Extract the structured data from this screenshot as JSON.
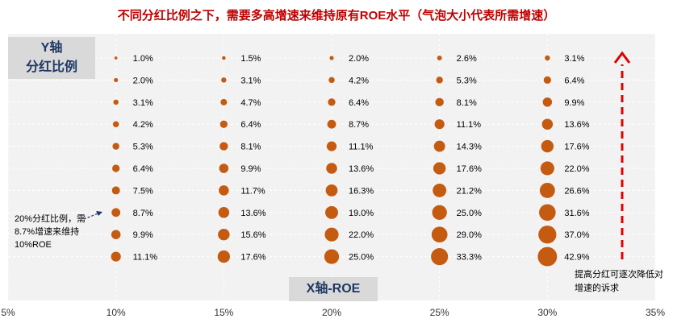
{
  "title": "不同分红比例之下，需要多高增速来维持原有ROE水平（气泡大小代表所需增速）",
  "y_title_line1": "Y轴",
  "y_title_line2": "分红比例",
  "x_title": "X轴-ROE",
  "note_left": "20%分红比例，需8.7%增速来维持10%ROE",
  "note_right": "提高分红可逐次降低对增速的诉求",
  "colors": {
    "bubble": "#c55a11",
    "title": "#c00000",
    "axis_title": "#1f3864",
    "arrow": "#e00000",
    "panel": "#d9d9d9"
  },
  "chart_data": {
    "type": "bubble",
    "x_label": "X轴-ROE",
    "y_label": "Y轴 分红比例",
    "xlim": [
      "5%",
      "35%"
    ],
    "x_ticks": [
      "5%",
      "10%",
      "15%",
      "20%",
      "25%",
      "30%",
      "35%"
    ],
    "y_axis_labels_shown": false,
    "rows": 10,
    "series": [
      {
        "x": "10%",
        "growth": [
          "1.0%",
          "2.0%",
          "3.1%",
          "4.2%",
          "5.3%",
          "6.4%",
          "7.5%",
          "8.7%",
          "9.9%",
          "11.1%"
        ]
      },
      {
        "x": "15%",
        "growth": [
          "1.5%",
          "3.1%",
          "4.7%",
          "6.4%",
          "8.1%",
          "9.9%",
          "11.7%",
          "13.6%",
          "15.6%",
          "17.6%"
        ]
      },
      {
        "x": "20%",
        "growth": [
          "2.0%",
          "4.2%",
          "6.4%",
          "8.7%",
          "11.1%",
          "13.6%",
          "16.3%",
          "19.0%",
          "22.0%",
          "25.0%"
        ]
      },
      {
        "x": "25%",
        "growth": [
          "2.6%",
          "5.3%",
          "8.1%",
          "11.1%",
          "14.3%",
          "17.6%",
          "21.2%",
          "25.0%",
          "29.0%",
          "33.3%"
        ]
      },
      {
        "x": "30%",
        "growth": [
          "3.1%",
          "6.4%",
          "9.9%",
          "13.6%",
          "17.6%",
          "22.0%",
          "26.6%",
          "31.6%",
          "37.0%",
          "42.9%"
        ]
      }
    ]
  }
}
